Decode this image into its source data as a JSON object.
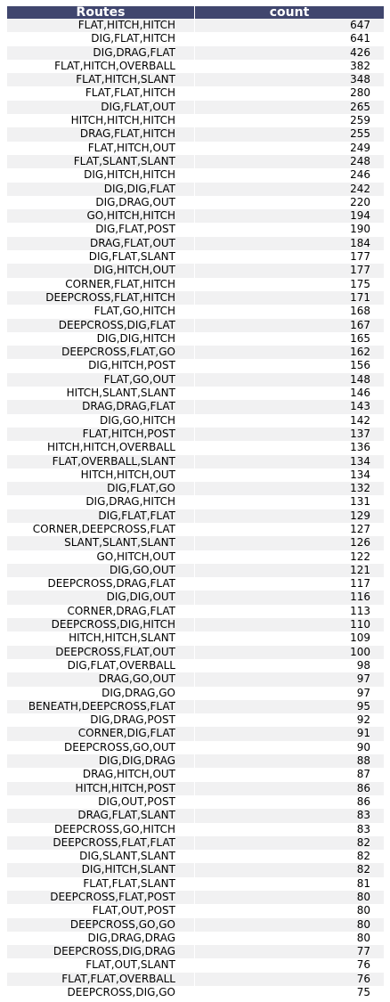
{
  "chart_data": {
    "type": "table",
    "header_color": "#40466e",
    "stripe_color": "#f1f1f2",
    "columns": [
      "Routes",
      "count"
    ],
    "rows": [
      [
        "FLAT,HITCH,HITCH",
        647
      ],
      [
        "DIG,FLAT,HITCH",
        641
      ],
      [
        "DIG,DRAG,FLAT",
        426
      ],
      [
        "FLAT,HITCH,OVERBALL",
        382
      ],
      [
        "FLAT,HITCH,SLANT",
        348
      ],
      [
        "FLAT,FLAT,HITCH",
        280
      ],
      [
        "DIG,FLAT,OUT",
        265
      ],
      [
        "HITCH,HITCH,HITCH",
        259
      ],
      [
        "DRAG,FLAT,HITCH",
        255
      ],
      [
        "FLAT,HITCH,OUT",
        249
      ],
      [
        "FLAT,SLANT,SLANT",
        248
      ],
      [
        "DIG,HITCH,HITCH",
        246
      ],
      [
        "DIG,DIG,FLAT",
        242
      ],
      [
        "DIG,DRAG,OUT",
        220
      ],
      [
        "GO,HITCH,HITCH",
        194
      ],
      [
        "DIG,FLAT,POST",
        190
      ],
      [
        "DRAG,FLAT,OUT",
        184
      ],
      [
        "DIG,FLAT,SLANT",
        177
      ],
      [
        "DIG,HITCH,OUT",
        177
      ],
      [
        "CORNER,FLAT,HITCH",
        175
      ],
      [
        "DEEPCROSS,FLAT,HITCH",
        171
      ],
      [
        "FLAT,GO,HITCH",
        168
      ],
      [
        "DEEPCROSS,DIG,FLAT",
        167
      ],
      [
        "DIG,DIG,HITCH",
        165
      ],
      [
        "DEEPCROSS,FLAT,GO",
        162
      ],
      [
        "DIG,HITCH,POST",
        156
      ],
      [
        "FLAT,GO,OUT",
        148
      ],
      [
        "HITCH,SLANT,SLANT",
        146
      ],
      [
        "DRAG,DRAG,FLAT",
        143
      ],
      [
        "DIG,GO,HITCH",
        142
      ],
      [
        "FLAT,HITCH,POST",
        137
      ],
      [
        "HITCH,HITCH,OVERBALL",
        136
      ],
      [
        "FLAT,OVERBALL,SLANT",
        134
      ],
      [
        "HITCH,HITCH,OUT",
        134
      ],
      [
        "DIG,FLAT,GO",
        132
      ],
      [
        "DIG,DRAG,HITCH",
        131
      ],
      [
        "DIG,FLAT,FLAT",
        129
      ],
      [
        "CORNER,DEEPCROSS,FLAT",
        127
      ],
      [
        "SLANT,SLANT,SLANT",
        126
      ],
      [
        "GO,HITCH,OUT",
        122
      ],
      [
        "DIG,GO,OUT",
        121
      ],
      [
        "DEEPCROSS,DRAG,FLAT",
        117
      ],
      [
        "DIG,DIG,OUT",
        116
      ],
      [
        "CORNER,DRAG,FLAT",
        113
      ],
      [
        "DEEPCROSS,DIG,HITCH",
        110
      ],
      [
        "HITCH,HITCH,SLANT",
        109
      ],
      [
        "DEEPCROSS,FLAT,OUT",
        100
      ],
      [
        "DIG,FLAT,OVERBALL",
        98
      ],
      [
        "DRAG,GO,OUT",
        97
      ],
      [
        "DIG,DRAG,GO",
        97
      ],
      [
        "BENEATH,DEEPCROSS,FLAT",
        95
      ],
      [
        "DIG,DRAG,POST",
        92
      ],
      [
        "CORNER,DIG,FLAT",
        91
      ],
      [
        "DEEPCROSS,GO,OUT",
        90
      ],
      [
        "DIG,DIG,DRAG",
        88
      ],
      [
        "DRAG,HITCH,OUT",
        87
      ],
      [
        "HITCH,HITCH,POST",
        86
      ],
      [
        "DIG,OUT,POST",
        86
      ],
      [
        "DRAG,FLAT,SLANT",
        83
      ],
      [
        "DEEPCROSS,GO,HITCH",
        83
      ],
      [
        "DEEPCROSS,FLAT,FLAT",
        82
      ],
      [
        "DIG,SLANT,SLANT",
        82
      ],
      [
        "DIG,HITCH,SLANT",
        82
      ],
      [
        "FLAT,FLAT,SLANT",
        81
      ],
      [
        "DEEPCROSS,FLAT,POST",
        80
      ],
      [
        "FLAT,OUT,POST",
        80
      ],
      [
        "DEEPCROSS,GO,GO",
        80
      ],
      [
        "DIG,DRAG,DRAG",
        80
      ],
      [
        "DEEPCROSS,DIG,DRAG",
        77
      ],
      [
        "FLAT,OUT,SLANT",
        76
      ],
      [
        "FLAT,FLAT,OVERBALL",
        76
      ],
      [
        "DEEPCROSS,DIG,GO",
        75
      ]
    ]
  }
}
